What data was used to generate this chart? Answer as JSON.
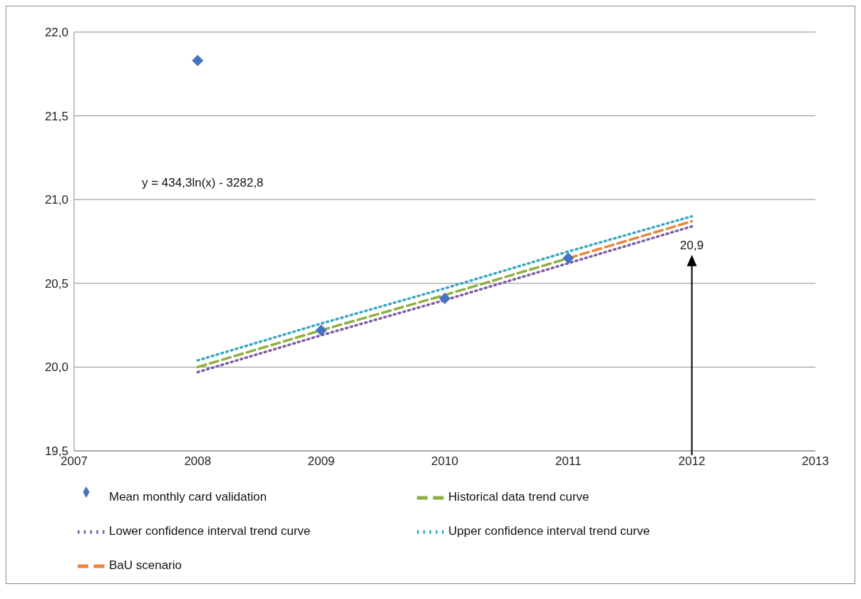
{
  "chart_data": {
    "type": "line",
    "xlim": [
      2007,
      2013
    ],
    "xticks": [
      2007,
      2008,
      2009,
      2010,
      2011,
      2012,
      2013
    ],
    "ylim": [
      19.5,
      22
    ],
    "yticks": [
      {
        "value": 19.5,
        "label": "19,5"
      },
      {
        "value": 20,
        "label": "20,0"
      },
      {
        "value": 20.5,
        "label": "20,5"
      },
      {
        "value": 21,
        "label": "21,0"
      },
      {
        "value": 21.5,
        "label": "21,5"
      },
      {
        "value": 22,
        "label": "22,0"
      }
    ],
    "grid": "y",
    "legend": "bottom",
    "series": [
      {
        "name": "Mean monthly card validation",
        "type": "scatter",
        "marker": "diamond",
        "color": "#4472c4",
        "x": [
          2008,
          2009,
          2010,
          2011
        ],
        "values": [
          21.83,
          20.22,
          20.41,
          20.65
        ]
      },
      {
        "name": "Historical data trend curve",
        "line_style": "dashed",
        "color": "#8db040",
        "x": [
          2008,
          2009,
          2010,
          2011
        ],
        "values": [
          20.0,
          20.22,
          20.43,
          20.65
        ]
      },
      {
        "name": "Lower confidence interval trend curve",
        "line_style": "dotted",
        "color": "#7d5aa6",
        "x": [
          2008,
          2009,
          2010,
          2011,
          2012
        ],
        "values": [
          19.97,
          20.19,
          20.4,
          20.62,
          20.84
        ]
      },
      {
        "name": "Upper confidence interval trend curve",
        "line_style": "dotted",
        "color": "#3ba6c4",
        "x": [
          2008,
          2009,
          2010,
          2011,
          2012
        ],
        "values": [
          20.04,
          20.26,
          20.47,
          20.69,
          20.9
        ]
      },
      {
        "name": "BaU scenario",
        "line_style": "dashed",
        "color": "#e9843a",
        "x": [
          2011,
          2012
        ],
        "values": [
          20.65,
          20.87
        ]
      }
    ],
    "annotations": [
      "y = 434,3ln(x) - 3282,8",
      {
        "text": "20,9",
        "x": 2012,
        "y": 20.9
      }
    ]
  }
}
